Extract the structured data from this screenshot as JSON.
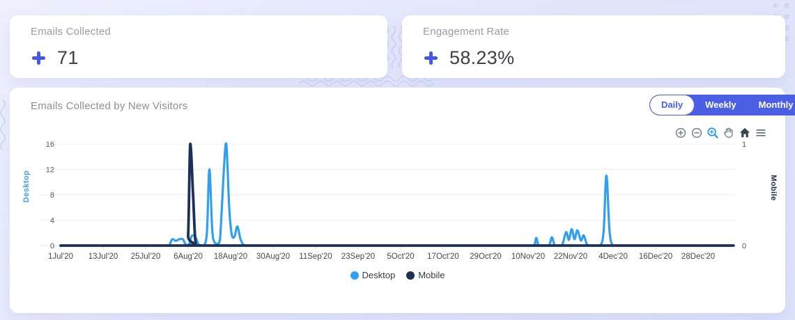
{
  "stats": [
    {
      "label": "Emails Collected",
      "value": "71"
    },
    {
      "label": "Engagement Rate",
      "value": "58.23%"
    }
  ],
  "chart": {
    "title": "Emails Collected by New Visitors",
    "range_buttons": [
      {
        "label": "Daily",
        "active": true
      },
      {
        "label": "Weekly",
        "active": false
      },
      {
        "label": "Monthly",
        "active": false
      }
    ],
    "toolbar_icons": [
      "zoom-in",
      "zoom-out",
      "selection-zoom",
      "pan",
      "home",
      "menu"
    ]
  },
  "chart_data": {
    "type": "line",
    "title": "Emails Collected by New Visitors",
    "x_tick_labels": [
      "1Jul'20",
      "13Jul'20",
      "25Jul'20",
      "6Aug'20",
      "18Aug'20",
      "30Aug'20",
      "11Sep'20",
      "23Sep'20",
      "5Oct'20",
      "17Oct'20",
      "29Oct'20",
      "10Nov'20",
      "22Nov'20",
      "4Dec'20",
      "16Dec'20",
      "28Dec'20"
    ],
    "x_tick_days": [
      0,
      12,
      24,
      36,
      48,
      60,
      72,
      84,
      96,
      108,
      120,
      132,
      144,
      156,
      168,
      180
    ],
    "x_domain": [
      0,
      190
    ],
    "grid": true,
    "legend_position": "bottom",
    "left_axis": {
      "title": "Desktop",
      "ticks": [
        0,
        4,
        8,
        12,
        16
      ],
      "range": [
        0,
        16
      ],
      "color": "#35a2ee"
    },
    "right_axis": {
      "title": "Mobile",
      "ticks": [
        0,
        1
      ],
      "range": [
        0,
        1
      ],
      "color": "#16294f"
    },
    "series": [
      {
        "name": "Desktop",
        "axis": "left",
        "color": "#319ff0",
        "points": [
          [
            0,
            0
          ],
          [
            28,
            0
          ],
          [
            30.5,
            0
          ],
          [
            31.5,
            1
          ],
          [
            32.5,
            0.75
          ],
          [
            33.5,
            1
          ],
          [
            34.5,
            1
          ],
          [
            35.3,
            0.2
          ],
          [
            36.2,
            0.1
          ],
          [
            37,
            1.5
          ],
          [
            38,
            1.4
          ],
          [
            39,
            0.15
          ],
          [
            40.3,
            0
          ],
          [
            41.3,
            2
          ],
          [
            42,
            12
          ],
          [
            42.8,
            2.5
          ],
          [
            43.5,
            0.5
          ],
          [
            44.2,
            0.3
          ],
          [
            45,
            1
          ],
          [
            46.2,
            13
          ],
          [
            46.8,
            16
          ],
          [
            47.6,
            6
          ],
          [
            48.3,
            1.8
          ],
          [
            49.1,
            1.4
          ],
          [
            49.9,
            3
          ],
          [
            50.8,
            1
          ],
          [
            51.7,
            0.1
          ],
          [
            53,
            0
          ],
          [
            60,
            0
          ],
          [
            130,
            0
          ],
          [
            133.5,
            0
          ],
          [
            134.3,
            1.2
          ],
          [
            135.1,
            0
          ],
          [
            137.8,
            0
          ],
          [
            138.7,
            1.3
          ],
          [
            139.6,
            0
          ],
          [
            141.5,
            0
          ],
          [
            142.7,
            2.1
          ],
          [
            143.5,
            0.9
          ],
          [
            144.3,
            2.6
          ],
          [
            145.1,
            1
          ],
          [
            145.9,
            2.4
          ],
          [
            146.9,
            0.8
          ],
          [
            147.7,
            1.6
          ],
          [
            148.7,
            0.1
          ],
          [
            150,
            0
          ],
          [
            152.3,
            0
          ],
          [
            153.3,
            2.2
          ],
          [
            154.1,
            11
          ],
          [
            155,
            2.2
          ],
          [
            156,
            0
          ],
          [
            158,
            0
          ],
          [
            190,
            0
          ]
        ]
      },
      {
        "name": "Mobile",
        "axis": "right",
        "color": "#1c3058",
        "points": [
          [
            0,
            0
          ],
          [
            35.2,
            0
          ],
          [
            36,
            0.1
          ],
          [
            36.6,
            1
          ],
          [
            37.4,
            0.5
          ],
          [
            38.2,
            0
          ],
          [
            40,
            0
          ],
          [
            190,
            0
          ]
        ]
      }
    ]
  },
  "colors": {
    "accent_plus": "#4457e5",
    "toggle_blue": "#4a5fe4",
    "desktop_series": "#319ff0",
    "mobile_series": "#1c3058",
    "toolbar_gray": "#6e8192",
    "toolbar_active": "#2f9ff0"
  }
}
